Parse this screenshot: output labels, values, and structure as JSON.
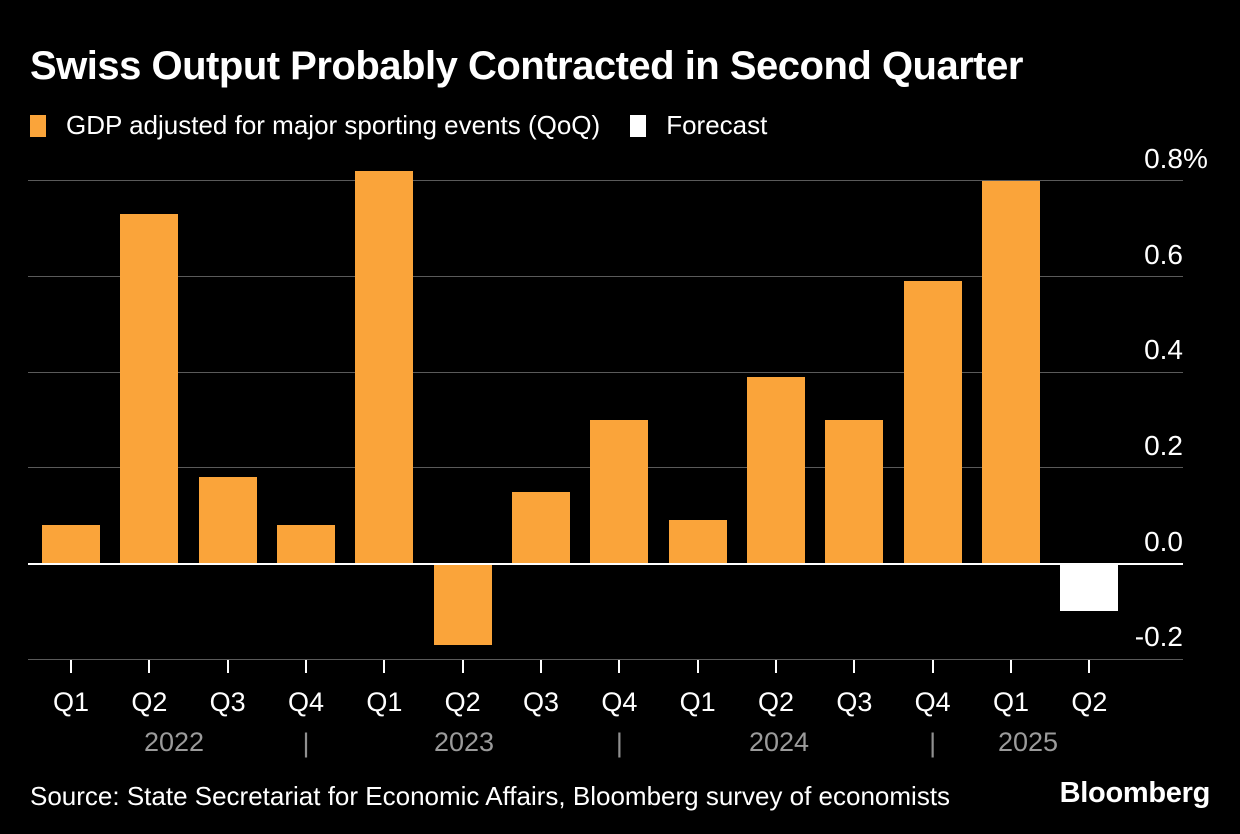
{
  "chart_data": {
    "type": "bar",
    "title": "Swiss Output Probably Contracted in Second Quarter",
    "legend": [
      {
        "label": "GDP adjusted for major sporting events (QoQ)",
        "color": "#FAA43A"
      },
      {
        "label": "Forecast",
        "color": "#FFFFFF"
      }
    ],
    "ylim": [
      -0.2,
      0.8
    ],
    "yticks": [
      0.8,
      0.6,
      0.4,
      0.2,
      0.0,
      -0.2
    ],
    "ytick_labels": [
      "0.8",
      "0.6",
      "0.4",
      "0.2",
      "0.0",
      "-0.2"
    ],
    "unit_suffix": "%",
    "grid": true,
    "legend_position": "top",
    "year_separator": "|",
    "bars": [
      {
        "year": "2022",
        "quarter": "Q1",
        "value": 0.08,
        "forecast": false
      },
      {
        "year": "2022",
        "quarter": "Q2",
        "value": 0.73,
        "forecast": false
      },
      {
        "year": "2022",
        "quarter": "Q3",
        "value": 0.18,
        "forecast": false
      },
      {
        "year": "2022",
        "quarter": "Q4",
        "value": 0.08,
        "forecast": false
      },
      {
        "year": "2023",
        "quarter": "Q1",
        "value": 0.82,
        "forecast": false
      },
      {
        "year": "2023",
        "quarter": "Q2",
        "value": -0.17,
        "forecast": false
      },
      {
        "year": "2023",
        "quarter": "Q3",
        "value": 0.15,
        "forecast": false
      },
      {
        "year": "2023",
        "quarter": "Q4",
        "value": 0.3,
        "forecast": false
      },
      {
        "year": "2024",
        "quarter": "Q1",
        "value": 0.09,
        "forecast": false
      },
      {
        "year": "2024",
        "quarter": "Q2",
        "value": 0.39,
        "forecast": false
      },
      {
        "year": "2024",
        "quarter": "Q3",
        "value": 0.3,
        "forecast": false
      },
      {
        "year": "2024",
        "quarter": "Q4",
        "value": 0.59,
        "forecast": false
      },
      {
        "year": "2025",
        "quarter": "Q1",
        "value": 0.8,
        "forecast": false
      },
      {
        "year": "2025",
        "quarter": "Q2",
        "value": -0.1,
        "forecast": true
      }
    ],
    "colors": {
      "bar": "#FAA43A",
      "forecast": "#FFFFFF",
      "grid": "#5a5a5a",
      "zero_line": "#FFFFFF",
      "year_text": "#9b9b9b",
      "background": "#000000"
    }
  },
  "footer": {
    "source": "Source: State Secretariat for Economic Affairs, Bloomberg survey of economists",
    "logo": "Bloomberg"
  }
}
